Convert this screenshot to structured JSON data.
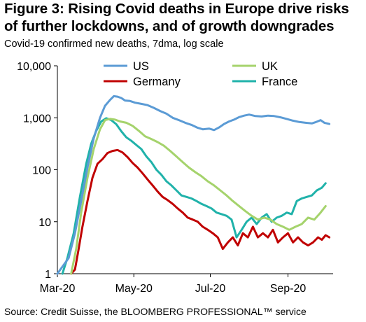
{
  "title_line1": "Figure 3: Rising Covid deaths in Europe drive risks",
  "title_line2": "of further lockdowns, and of growth downgrades",
  "source": "Source: Credit Suisse, the BLOOMBERG PROFESSIONAL™ service",
  "chart_data": {
    "type": "line",
    "title": "Figure 3: Rising Covid deaths in Europe drive risks of further lockdowns, and of growth downgrades",
    "subtitle": "Covid-19 confirmed new deaths, 7dma, log scale",
    "xlabel": "",
    "ylabel": "",
    "yscale": "log",
    "ylim": [
      1,
      10000
    ],
    "xlim": [
      "2020-03-01",
      "2020-10-07"
    ],
    "yticks": [
      1,
      10,
      100,
      1000,
      10000
    ],
    "ytick_labels": [
      "1",
      "10",
      "100",
      "1,000",
      "10,000"
    ],
    "xticks": [
      "2020-03-01",
      "2020-05-01",
      "2020-07-01",
      "2020-09-01"
    ],
    "xtick_labels": [
      "Mar-20",
      "May-20",
      "Jul-20",
      "Sep-20"
    ],
    "grid": false,
    "legend_position": "top",
    "series": [
      {
        "name": "US",
        "color": "#5b9bd5",
        "points": [
          [
            "2020-03-01",
            1
          ],
          [
            "2020-03-10",
            2
          ],
          [
            "2020-03-15",
            6
          ],
          [
            "2020-03-20",
            25
          ],
          [
            "2020-03-25",
            110
          ],
          [
            "2020-03-30",
            400
          ],
          [
            "2020-04-04",
            1000
          ],
          [
            "2020-04-08",
            1700
          ],
          [
            "2020-04-12",
            2200
          ],
          [
            "2020-04-15",
            2600
          ],
          [
            "2020-04-18",
            2550
          ],
          [
            "2020-04-21",
            2400
          ],
          [
            "2020-04-24",
            2150
          ],
          [
            "2020-04-28",
            2100
          ],
          [
            "2020-05-02",
            1950
          ],
          [
            "2020-05-07",
            1850
          ],
          [
            "2020-05-12",
            1750
          ],
          [
            "2020-05-17",
            1550
          ],
          [
            "2020-05-22",
            1350
          ],
          [
            "2020-05-27",
            1200
          ],
          [
            "2020-06-01",
            1000
          ],
          [
            "2020-06-06",
            900
          ],
          [
            "2020-06-11",
            800
          ],
          [
            "2020-06-16",
            730
          ],
          [
            "2020-06-21",
            640
          ],
          [
            "2020-06-25",
            600
          ],
          [
            "2020-06-30",
            620
          ],
          [
            "2020-07-04",
            580
          ],
          [
            "2020-07-08",
            650
          ],
          [
            "2020-07-12",
            760
          ],
          [
            "2020-07-16",
            850
          ],
          [
            "2020-07-20",
            920
          ],
          [
            "2020-07-24",
            1030
          ],
          [
            "2020-07-28",
            1100
          ],
          [
            "2020-08-01",
            1150
          ],
          [
            "2020-08-06",
            1080
          ],
          [
            "2020-08-11",
            1060
          ],
          [
            "2020-08-16",
            1100
          ],
          [
            "2020-08-21",
            1080
          ],
          [
            "2020-08-26",
            1020
          ],
          [
            "2020-08-31",
            950
          ],
          [
            "2020-09-05",
            880
          ],
          [
            "2020-09-10",
            830
          ],
          [
            "2020-09-15",
            800
          ],
          [
            "2020-09-20",
            780
          ],
          [
            "2020-09-23",
            820
          ],
          [
            "2020-09-27",
            900
          ],
          [
            "2020-09-30",
            800
          ],
          [
            "2020-10-04",
            760
          ]
        ]
      },
      {
        "name": "UK",
        "color": "#a5d36c",
        "points": [
          [
            "2020-03-12",
            1
          ],
          [
            "2020-03-16",
            3
          ],
          [
            "2020-03-20",
            15
          ],
          [
            "2020-03-25",
            70
          ],
          [
            "2020-03-30",
            250
          ],
          [
            "2020-04-04",
            600
          ],
          [
            "2020-04-08",
            900
          ],
          [
            "2020-04-12",
            950
          ],
          [
            "2020-04-16",
            920
          ],
          [
            "2020-04-20",
            850
          ],
          [
            "2020-04-25",
            800
          ],
          [
            "2020-04-30",
            700
          ],
          [
            "2020-05-05",
            560
          ],
          [
            "2020-05-10",
            440
          ],
          [
            "2020-05-15",
            390
          ],
          [
            "2020-05-20",
            340
          ],
          [
            "2020-05-25",
            290
          ],
          [
            "2020-05-30",
            230
          ],
          [
            "2020-06-04",
            180
          ],
          [
            "2020-06-09",
            140
          ],
          [
            "2020-06-14",
            110
          ],
          [
            "2020-06-19",
            90
          ],
          [
            "2020-06-24",
            75
          ],
          [
            "2020-06-29",
            60
          ],
          [
            "2020-07-04",
            50
          ],
          [
            "2020-07-09",
            40
          ],
          [
            "2020-07-14",
            32
          ],
          [
            "2020-07-19",
            25
          ],
          [
            "2020-07-24",
            20
          ],
          [
            "2020-07-29",
            16
          ],
          [
            "2020-08-03",
            13
          ],
          [
            "2020-08-08",
            11
          ],
          [
            "2020-08-13",
            12
          ],
          [
            "2020-08-18",
            11
          ],
          [
            "2020-08-23",
            9
          ],
          [
            "2020-08-28",
            8
          ],
          [
            "2020-09-02",
            7
          ],
          [
            "2020-09-07",
            8
          ],
          [
            "2020-09-12",
            9
          ],
          [
            "2020-09-17",
            12
          ],
          [
            "2020-09-22",
            11
          ],
          [
            "2020-09-27",
            15
          ],
          [
            "2020-10-01",
            20
          ]
        ]
      },
      {
        "name": "Germany",
        "color": "#c00000",
        "points": [
          [
            "2020-03-12",
            1
          ],
          [
            "2020-03-15",
            1.2
          ],
          [
            "2020-03-18",
            3
          ],
          [
            "2020-03-21",
            8
          ],
          [
            "2020-03-25",
            25
          ],
          [
            "2020-03-29",
            70
          ],
          [
            "2020-04-02",
            130
          ],
          [
            "2020-04-06",
            160
          ],
          [
            "2020-04-10",
            210
          ],
          [
            "2020-04-14",
            230
          ],
          [
            "2020-04-18",
            240
          ],
          [
            "2020-04-22",
            215
          ],
          [
            "2020-04-26",
            175
          ],
          [
            "2020-04-30",
            135
          ],
          [
            "2020-05-04",
            110
          ],
          [
            "2020-05-08",
            85
          ],
          [
            "2020-05-12",
            65
          ],
          [
            "2020-05-16",
            50
          ],
          [
            "2020-05-20",
            38
          ],
          [
            "2020-05-24",
            30
          ],
          [
            "2020-05-28",
            26
          ],
          [
            "2020-06-01",
            22
          ],
          [
            "2020-06-05",
            18
          ],
          [
            "2020-06-09",
            15
          ],
          [
            "2020-06-13",
            12
          ],
          [
            "2020-06-17",
            11
          ],
          [
            "2020-06-21",
            10
          ],
          [
            "2020-06-25",
            8
          ],
          [
            "2020-06-29",
            7
          ],
          [
            "2020-07-03",
            6
          ],
          [
            "2020-07-07",
            5
          ],
          [
            "2020-07-11",
            3
          ],
          [
            "2020-07-15",
            4
          ],
          [
            "2020-07-19",
            5
          ],
          [
            "2020-07-23",
            3.5
          ],
          [
            "2020-07-27",
            6
          ],
          [
            "2020-07-31",
            5
          ],
          [
            "2020-08-04",
            8
          ],
          [
            "2020-08-08",
            5
          ],
          [
            "2020-08-12",
            6
          ],
          [
            "2020-08-16",
            5
          ],
          [
            "2020-08-20",
            7
          ],
          [
            "2020-08-24",
            4
          ],
          [
            "2020-08-28",
            5
          ],
          [
            "2020-09-01",
            6
          ],
          [
            "2020-09-05",
            4
          ],
          [
            "2020-09-09",
            5
          ],
          [
            "2020-09-13",
            4
          ],
          [
            "2020-09-17",
            3.5
          ],
          [
            "2020-09-21",
            4
          ],
          [
            "2020-09-25",
            5
          ],
          [
            "2020-09-28",
            4.5
          ],
          [
            "2020-10-01",
            5.5
          ],
          [
            "2020-10-04",
            5
          ]
        ]
      },
      {
        "name": "France",
        "color": "#20b2aa",
        "points": [
          [
            "2020-03-05",
            1
          ],
          [
            "2020-03-09",
            2
          ],
          [
            "2020-03-14",
            6
          ],
          [
            "2020-03-19",
            30
          ],
          [
            "2020-03-24",
            130
          ],
          [
            "2020-03-28",
            320
          ],
          [
            "2020-04-01",
            560
          ],
          [
            "2020-04-05",
            850
          ],
          [
            "2020-04-09",
            980
          ],
          [
            "2020-04-13",
            900
          ],
          [
            "2020-04-17",
            750
          ],
          [
            "2020-04-21",
            550
          ],
          [
            "2020-04-25",
            420
          ],
          [
            "2020-04-29",
            360
          ],
          [
            "2020-05-03",
            300
          ],
          [
            "2020-05-07",
            250
          ],
          [
            "2020-05-11",
            180
          ],
          [
            "2020-05-15",
            140
          ],
          [
            "2020-05-19",
            100
          ],
          [
            "2020-05-23",
            80
          ],
          [
            "2020-05-27",
            60
          ],
          [
            "2020-05-31",
            50
          ],
          [
            "2020-06-04",
            40
          ],
          [
            "2020-06-08",
            32
          ],
          [
            "2020-06-12",
            30
          ],
          [
            "2020-06-16",
            28
          ],
          [
            "2020-06-20",
            25
          ],
          [
            "2020-06-24",
            22
          ],
          [
            "2020-06-28",
            20
          ],
          [
            "2020-07-02",
            18
          ],
          [
            "2020-07-06",
            15
          ],
          [
            "2020-07-10",
            14
          ],
          [
            "2020-07-14",
            13
          ],
          [
            "2020-07-18",
            11
          ],
          [
            "2020-07-22",
            5
          ],
          [
            "2020-07-26",
            7
          ],
          [
            "2020-07-30",
            10
          ],
          [
            "2020-08-03",
            12
          ],
          [
            "2020-08-07",
            9
          ],
          [
            "2020-08-11",
            12
          ],
          [
            "2020-08-15",
            14
          ],
          [
            "2020-08-19",
            10
          ],
          [
            "2020-08-23",
            12
          ],
          [
            "2020-08-27",
            13
          ],
          [
            "2020-08-31",
            15
          ],
          [
            "2020-09-04",
            14
          ],
          [
            "2020-09-08",
            25
          ],
          [
            "2020-09-12",
            28
          ],
          [
            "2020-09-16",
            30
          ],
          [
            "2020-09-20",
            32
          ],
          [
            "2020-09-24",
            40
          ],
          [
            "2020-09-28",
            45
          ],
          [
            "2020-10-01",
            55
          ]
        ]
      }
    ]
  }
}
